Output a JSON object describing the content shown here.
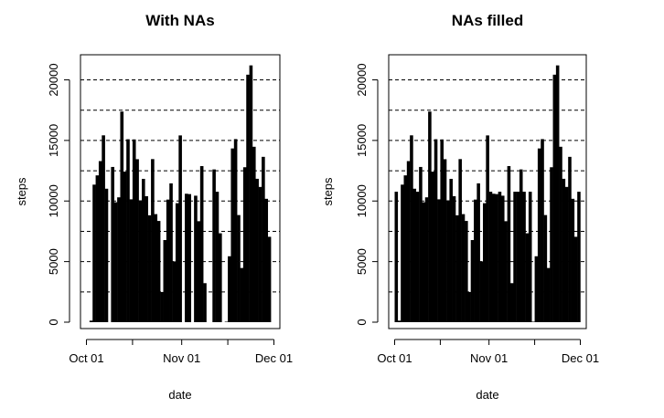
{
  "chart_data": [
    {
      "type": "bar",
      "title": "With NAs",
      "xlabel": "date",
      "ylabel": "steps",
      "x_ticks": [
        "Oct 01",
        "Nov 01",
        "Dec 01"
      ],
      "y_ticks": [
        "0",
        "5000",
        "10000",
        "15000",
        "20000"
      ],
      "ylim": [
        0,
        22000
      ],
      "grid": "horizontal dashed at 2500 steps",
      "bar_color": "#000000",
      "dates": [
        "2012-10-01",
        "2012-10-02",
        "2012-10-03",
        "2012-10-04",
        "2012-10-05",
        "2012-10-06",
        "2012-10-07",
        "2012-10-08",
        "2012-10-09",
        "2012-10-10",
        "2012-10-11",
        "2012-10-12",
        "2012-10-13",
        "2012-10-14",
        "2012-10-15",
        "2012-10-16",
        "2012-10-17",
        "2012-10-18",
        "2012-10-19",
        "2012-10-20",
        "2012-10-21",
        "2012-10-22",
        "2012-10-23",
        "2012-10-24",
        "2012-10-25",
        "2012-10-26",
        "2012-10-27",
        "2012-10-28",
        "2012-10-29",
        "2012-10-30",
        "2012-10-31",
        "2012-11-01",
        "2012-11-02",
        "2012-11-03",
        "2012-11-04",
        "2012-11-05",
        "2012-11-06",
        "2012-11-07",
        "2012-11-08",
        "2012-11-09",
        "2012-11-10",
        "2012-11-11",
        "2012-11-12",
        "2012-11-13",
        "2012-11-14",
        "2012-11-15",
        "2012-11-16",
        "2012-11-17",
        "2012-11-18",
        "2012-11-19",
        "2012-11-20",
        "2012-11-21",
        "2012-11-22",
        "2012-11-23",
        "2012-11-24",
        "2012-11-25",
        "2012-11-26",
        "2012-11-27",
        "2012-11-28",
        "2012-11-29",
        "2012-11-30"
      ],
      "values": [
        0,
        126,
        11352,
        12116,
        13294,
        15420,
        11015,
        0,
        12811,
        9900,
        10304,
        17382,
        12426,
        15098,
        10139,
        15084,
        13452,
        10056,
        11829,
        10395,
        8821,
        13460,
        8918,
        8355,
        2492,
        6778,
        10119,
        11458,
        5018,
        9819,
        15414,
        0,
        10600,
        10571,
        0,
        10439,
        8334,
        12883,
        3219,
        0,
        0,
        12608,
        10765,
        7336,
        0,
        41,
        5441,
        14339,
        15110,
        8841,
        4472,
        12787,
        20427,
        21194,
        14478,
        11834,
        11162,
        13646,
        10183,
        7047,
        0
      ]
    },
    {
      "type": "bar",
      "title": "NAs filled",
      "xlabel": "date",
      "ylabel": "steps",
      "x_ticks": [
        "Oct 01",
        "Nov 01",
        "Dec 01"
      ],
      "y_ticks": [
        "0",
        "5000",
        "10000",
        "15000",
        "20000"
      ],
      "ylim": [
        0,
        22000
      ],
      "grid": "horizontal dashed at 2500 steps",
      "bar_color": "#000000",
      "dates": [
        "2012-10-01",
        "2012-10-02",
        "2012-10-03",
        "2012-10-04",
        "2012-10-05",
        "2012-10-06",
        "2012-10-07",
        "2012-10-08",
        "2012-10-09",
        "2012-10-10",
        "2012-10-11",
        "2012-10-12",
        "2012-10-13",
        "2012-10-14",
        "2012-10-15",
        "2012-10-16",
        "2012-10-17",
        "2012-10-18",
        "2012-10-19",
        "2012-10-20",
        "2012-10-21",
        "2012-10-22",
        "2012-10-23",
        "2012-10-24",
        "2012-10-25",
        "2012-10-26",
        "2012-10-27",
        "2012-10-28",
        "2012-10-29",
        "2012-10-30",
        "2012-10-31",
        "2012-11-01",
        "2012-11-02",
        "2012-11-03",
        "2012-11-04",
        "2012-11-05",
        "2012-11-06",
        "2012-11-07",
        "2012-11-08",
        "2012-11-09",
        "2012-11-10",
        "2012-11-11",
        "2012-11-12",
        "2012-11-13",
        "2012-11-14",
        "2012-11-15",
        "2012-11-16",
        "2012-11-17",
        "2012-11-18",
        "2012-11-19",
        "2012-11-20",
        "2012-11-21",
        "2012-11-22",
        "2012-11-23",
        "2012-11-24",
        "2012-11-25",
        "2012-11-26",
        "2012-11-27",
        "2012-11-28",
        "2012-11-29",
        "2012-11-30"
      ],
      "values": [
        10766,
        126,
        11352,
        12116,
        13294,
        15420,
        11015,
        10766,
        12811,
        9900,
        10304,
        17382,
        12426,
        15098,
        10139,
        15084,
        13452,
        10056,
        11829,
        10395,
        8821,
        13460,
        8918,
        8355,
        2492,
        6778,
        10119,
        11458,
        5018,
        9819,
        15414,
        10766,
        10600,
        10571,
        10766,
        10439,
        8334,
        12883,
        3219,
        10766,
        10766,
        12608,
        10765,
        7336,
        10766,
        41,
        5441,
        14339,
        15110,
        8841,
        4472,
        12787,
        20427,
        21194,
        14478,
        11834,
        11162,
        13646,
        10183,
        7047,
        10766
      ]
    }
  ]
}
